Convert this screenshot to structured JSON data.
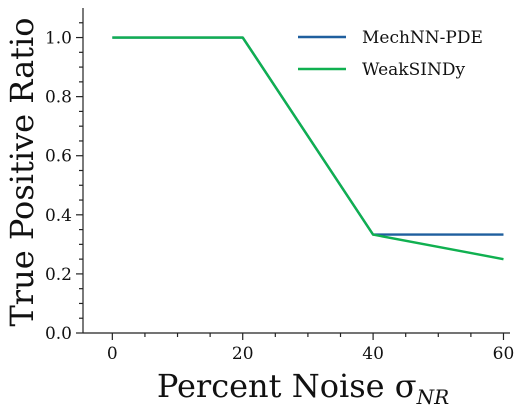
{
  "chart_data": {
    "type": "line",
    "xlabel": "Percent Noise σ",
    "xlabel_sub": "NR",
    "ylabel": "True Positive Ratio",
    "xlim": [
      -4.5,
      61
    ],
    "ylim": [
      0,
      1.1
    ],
    "xticks": [
      0,
      20,
      40,
      60
    ],
    "xtick_labels": [
      "0",
      "20",
      "40",
      "60"
    ],
    "yticks": [
      0.0,
      0.2,
      0.4,
      0.6,
      0.8,
      1.0
    ],
    "ytick_labels": [
      "0.0",
      "0.2",
      "0.4",
      "0.6",
      "0.8",
      "1.0"
    ],
    "x_minor_ticks": [
      5,
      10,
      15,
      25,
      30,
      35,
      45,
      50,
      55
    ],
    "y_minor_ticks": [
      0.05,
      0.1,
      0.15,
      0.25,
      0.3,
      0.35,
      0.45,
      0.5,
      0.55,
      0.65,
      0.7,
      0.75,
      0.85,
      0.9,
      0.95,
      1.05
    ],
    "grid": false,
    "legend_position": "top-right",
    "series": [
      {
        "name": "MechNN-PDE",
        "color": "#1f5f9e",
        "x": [
          0,
          20,
          40,
          60
        ],
        "y": [
          1.0,
          1.0,
          0.333,
          0.333
        ]
      },
      {
        "name": "WeakSINDy",
        "color": "#10b050",
        "x": [
          0,
          20,
          40,
          60
        ],
        "y": [
          1.0,
          1.0,
          0.333,
          0.25
        ]
      }
    ]
  }
}
